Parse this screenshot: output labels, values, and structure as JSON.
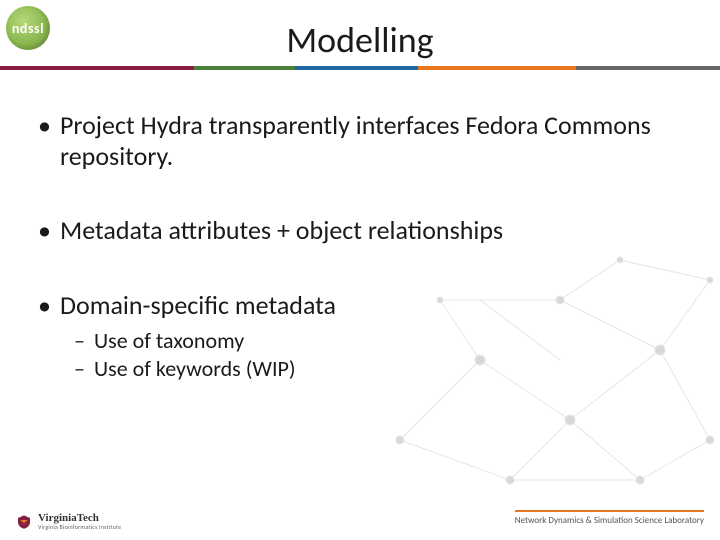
{
  "logo": {
    "text": "ndssl",
    "bg_inner": "#b8d97a",
    "bg_outer": "#6a9a3a"
  },
  "title": "Modelling",
  "rule_segments": [
    {
      "color": "#861f41",
      "width_pct": 27
    },
    {
      "color": "#4b7f3a",
      "width_pct": 14
    },
    {
      "color": "#1f6aa5",
      "width_pct": 17
    },
    {
      "color": "#e87722",
      "width_pct": 22
    },
    {
      "color": "#666666",
      "width_pct": 20
    }
  ],
  "bullets": [
    {
      "text": "Project Hydra transparently interfaces Fedora Commons repository.",
      "sub": []
    },
    {
      "text": "Metadata attributes + object relationships",
      "sub": []
    },
    {
      "text": "Domain-specific metadata",
      "sub": [
        "Use of taxonomy",
        "Use of keywords (WIP)"
      ]
    }
  ],
  "footer": {
    "vt_name": "VirginiaTech",
    "vt_sub": "Virginia Bioinformatics Institute",
    "right_text": "Network Dynamics & Simulation Science Laboratory",
    "right_border_color": "#e87722"
  },
  "colors": {
    "text": "#1a1a1a",
    "bg": "#ffffff",
    "network_line": "#bfbfbf",
    "network_node": "#a6a6a6"
  }
}
